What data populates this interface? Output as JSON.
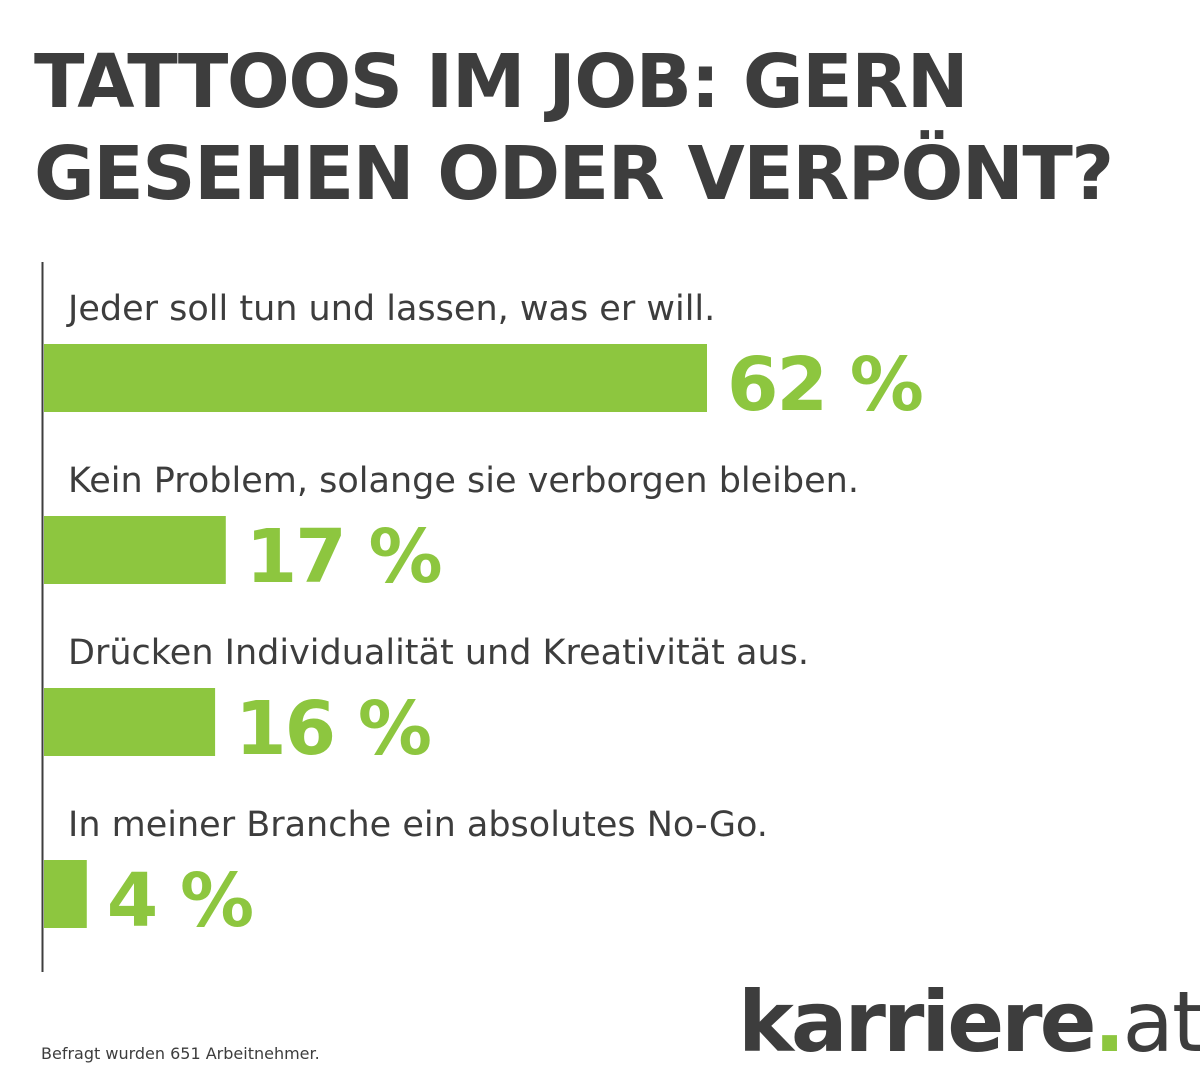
{
  "title_lines": [
    "TATTOOS IM JOB: GERN",
    "GESEHEN ODER VERPÖNT?"
  ],
  "colors": {
    "bar": "#8dc63f",
    "text": "#3d3d3d",
    "axis": "#3d3d3d"
  },
  "chart_data": {
    "type": "bar",
    "orientation": "horizontal",
    "title": "TATTOOS IM JOB: GERN GESEHEN ODER VERPÖNT?",
    "categories": [
      "Jeder soll tun und lassen, was er will.",
      "Kein Problem, solange sie verborgen bleiben.",
      "Drücken Individualität und Kreativität aus.",
      "In meiner Branche ein absolutes No-Go."
    ],
    "values": [
      62,
      17,
      16,
      4
    ],
    "value_labels": [
      "62 %",
      "17 %",
      "16 %",
      "4 %"
    ],
    "unit": "%",
    "xlim": [
      0,
      62
    ],
    "grid": false,
    "legend": "none",
    "xlabel": "",
    "ylabel": ""
  },
  "footnote": "Befragt wurden 651 Arbeitnehmer.",
  "logo": {
    "word": "karriere",
    "dot": ".",
    "tld": "at"
  }
}
